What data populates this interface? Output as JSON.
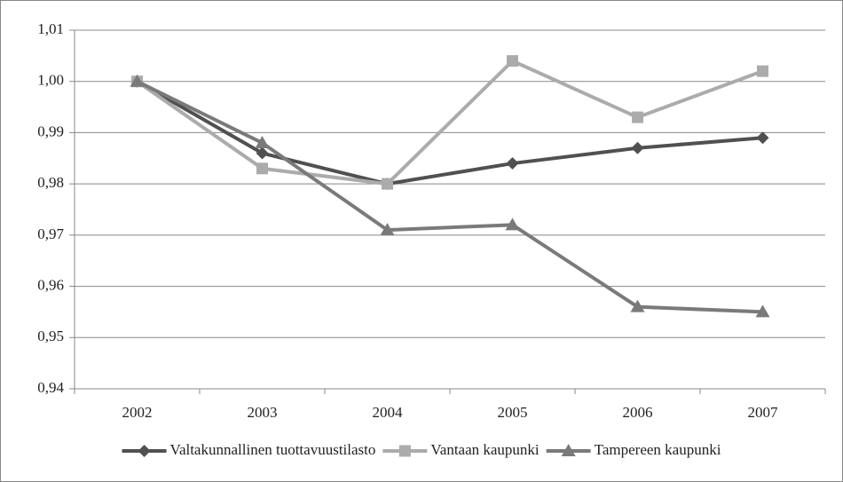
{
  "chart_data": {
    "type": "line",
    "categories": [
      "2002",
      "2003",
      "2004",
      "2005",
      "2006",
      "2007"
    ],
    "series": [
      {
        "name": "Valtakunnallinen tuottavuustilasto",
        "color": "#505050",
        "marker": "diamond",
        "values": [
          1.0,
          0.986,
          0.98,
          0.984,
          0.987,
          0.989
        ]
      },
      {
        "name": "Vantaan kaupunki",
        "color": "#ababab",
        "marker": "square",
        "values": [
          1.0,
          0.983,
          0.98,
          1.004,
          0.993,
          1.002
        ]
      },
      {
        "name": "Tampereen kaupunki",
        "color": "#7a7a7a",
        "marker": "triangle",
        "values": [
          1.0,
          0.988,
          0.971,
          0.972,
          0.956,
          0.955
        ]
      }
    ],
    "ylim": [
      0.94,
      1.01
    ],
    "yticks": [
      {
        "value": 0.94,
        "label": "0,94"
      },
      {
        "value": 0.95,
        "label": "0,95"
      },
      {
        "value": 0.96,
        "label": "0,96"
      },
      {
        "value": 0.97,
        "label": "0,97"
      },
      {
        "value": 0.98,
        "label": "0,98"
      },
      {
        "value": 0.99,
        "label": "0,99"
      },
      {
        "value": 1.0,
        "label": "1,00"
      },
      {
        "value": 1.01,
        "label": "1,01"
      }
    ],
    "grid": true,
    "legend": "bottom"
  }
}
